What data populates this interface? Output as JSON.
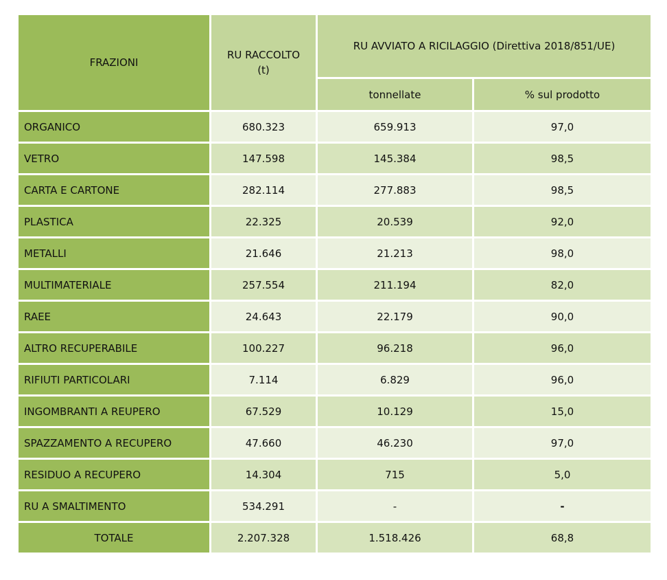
{
  "colors": {
    "green_dark": "#9bbb59",
    "green_mid": "#c3d69b",
    "row_light": "#ebf1de",
    "row_alt": "#d7e4bc",
    "gridline": "#ffffff",
    "text": "#111111"
  },
  "table": {
    "header": {
      "frazioni": "FRAZIONI",
      "raccolto": "RU RACCOLTO\n(t)",
      "avviato": "RU AVVIATO A RICILAGGIO (Direttiva 2018/851/UE)",
      "tonnellate": "tonnellate",
      "percento": "% sul prodotto"
    },
    "rows": [
      {
        "label": "ORGANICO",
        "raccolto": "680.323",
        "tonnellate": "659.913",
        "percento": "97,0"
      },
      {
        "label": "VETRO",
        "raccolto": "147.598",
        "tonnellate": "145.384",
        "percento": "98,5"
      },
      {
        "label": "CARTA E CARTONE",
        "raccolto": "282.114",
        "tonnellate": "277.883",
        "percento": "98,5"
      },
      {
        "label": "PLASTICA",
        "raccolto": "22.325",
        "tonnellate": "20.539",
        "percento": "92,0"
      },
      {
        "label": "METALLI",
        "raccolto": "21.646",
        "tonnellate": "21.213",
        "percento": "98,0"
      },
      {
        "label": "MULTIMATERIALE",
        "raccolto": "257.554",
        "tonnellate": "211.194",
        "percento": "82,0"
      },
      {
        "label": "RAEE",
        "raccolto": "24.643",
        "tonnellate": "22.179",
        "percento": "90,0"
      },
      {
        "label": "ALTRO RECUPERABILE",
        "raccolto": "100.227",
        "tonnellate": "96.218",
        "percento": "96,0"
      },
      {
        "label": "RIFIUTI PARTICOLARI",
        "raccolto": "7.114",
        "tonnellate": "6.829",
        "percento": "96,0"
      },
      {
        "label": "INGOMBRANTI A REUPERO",
        "raccolto": "67.529",
        "tonnellate": "10.129",
        "percento": "15,0"
      },
      {
        "label": "SPAZZAMENTO A RECUPERO",
        "raccolto": "47.660",
        "tonnellate": "46.230",
        "percento": "97,0"
      },
      {
        "label": "RESIDUO A RECUPERO",
        "raccolto": "14.304",
        "tonnellate": "715",
        "percento": "5,0"
      },
      {
        "label": "RU A SMALTIMENTO",
        "raccolto": "534.291",
        "tonnellate": "-",
        "percento": "-",
        "percento_bold": true
      }
    ],
    "total_row": {
      "label": "TOTALE",
      "raccolto": "2.207.328",
      "tonnellate": "1.518.426",
      "percento": "68,8"
    }
  },
  "chart_data": {
    "type": "table",
    "title": "RU AVVIATO A RICILAGGIO (Direttiva 2018/851/UE)",
    "columns": [
      "FRAZIONI",
      "RU RACCOLTO (t)",
      "RU AVVIATO A RICILAGGIO - tonnellate",
      "RU AVVIATO A RICILAGGIO - % sul prodotto"
    ],
    "rows": [
      [
        "ORGANICO",
        680323,
        659913,
        97.0
      ],
      [
        "VETRO",
        147598,
        145384,
        98.5
      ],
      [
        "CARTA E CARTONE",
        282114,
        277883,
        98.5
      ],
      [
        "PLASTICA",
        22325,
        20539,
        92.0
      ],
      [
        "METALLI",
        21646,
        21213,
        98.0
      ],
      [
        "MULTIMATERIALE",
        257554,
        211194,
        82.0
      ],
      [
        "RAEE",
        24643,
        22179,
        90.0
      ],
      [
        "ALTRO RECUPERABILE",
        100227,
        96218,
        96.0
      ],
      [
        "RIFIUTI PARTICOLARI",
        7114,
        6829,
        96.0
      ],
      [
        "INGOMBRANTI A REUPERO",
        67529,
        10129,
        15.0
      ],
      [
        "SPAZZAMENTO A RECUPERO",
        47660,
        46230,
        97.0
      ],
      [
        "RESIDUO A RECUPERO",
        14304,
        715,
        5.0
      ],
      [
        "RU A SMALTIMENTO",
        534291,
        null,
        null
      ],
      [
        "TOTALE",
        2207328,
        1518426,
        68.8
      ]
    ]
  }
}
